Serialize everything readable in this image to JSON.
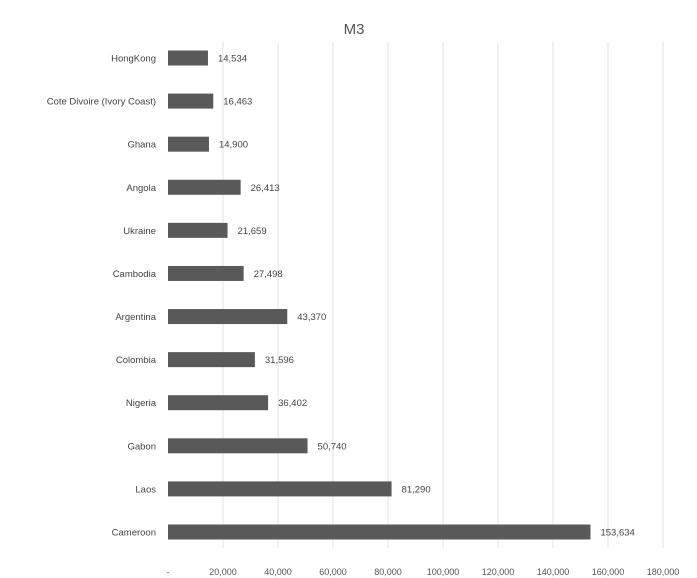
{
  "chart_data": {
    "type": "bar",
    "orientation": "horizontal",
    "title": "M3",
    "xlabel": "",
    "ylabel": "",
    "xlim": [
      0,
      180000
    ],
    "grid": true,
    "bar_color": "#595959",
    "categories": [
      "Cameroon",
      "Laos",
      "Gabon",
      "Nigeria",
      "Colombia",
      "Argentina",
      "Cambodia",
      "Ukraine",
      "Angola",
      "Ghana",
      "Cote Divoire (Ivory Coast)",
      "HongKong"
    ],
    "values": [
      153634,
      81290,
      50740,
      36402,
      31596,
      43370,
      27498,
      21659,
      26413,
      14900,
      16463,
      14534
    ],
    "value_labels": [
      "153,634",
      "81,290",
      "50,740",
      "36,402",
      "31,596",
      "43,370",
      "27,498",
      "21,659",
      "26,413",
      "14,900",
      "16,463",
      "14,534"
    ],
    "ticks": [
      0,
      20000,
      40000,
      60000,
      80000,
      100000,
      120000,
      140000,
      160000,
      180000
    ],
    "tick_labels": [
      "-",
      "20,000",
      "40,000",
      "60,000",
      "80,000",
      "100,000",
      "120,000",
      "140,000",
      "160,000",
      "180,000"
    ]
  }
}
